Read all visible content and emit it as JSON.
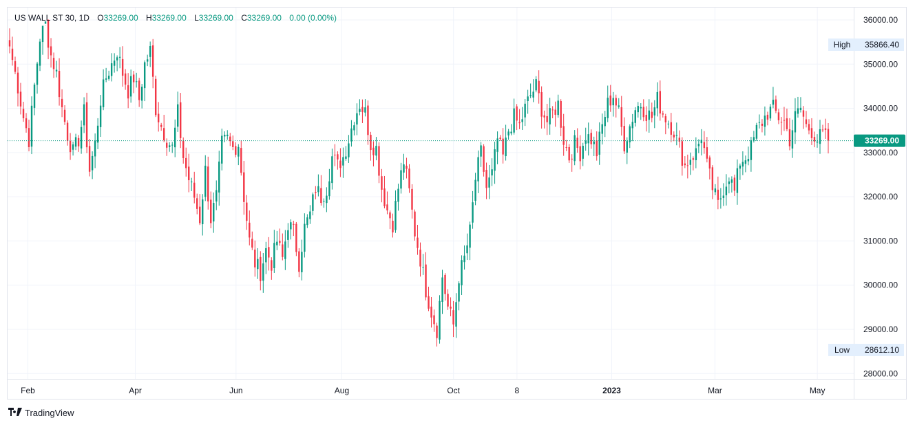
{
  "legend": {
    "symbol": "US WALL ST 30, 1D",
    "open_label": "O",
    "open": "33269.00",
    "high_label": "H",
    "high": "33269.00",
    "low_label": "L",
    "low": "33269.00",
    "close_label": "C",
    "close": "33269.00",
    "change": "0.00 (0.00%)"
  },
  "brand": {
    "name": "TradingView"
  },
  "colors": {
    "up": "#089981",
    "down": "#f23645",
    "last_price_bg": "#089981",
    "label_bg": "#e3effd"
  },
  "chart_data": {
    "type": "candlestick",
    "title": "US WALL ST 30, 1D",
    "y_ticks": [
      28000,
      29000,
      30000,
      31000,
      32000,
      33000,
      34000,
      35000,
      36000
    ],
    "y_tick_labels": [
      "28000.00",
      "29000.00",
      "30000.00",
      "31000.00",
      "32000.00",
      "33000.00",
      "34000.00",
      "35000.00",
      "36000.00"
    ],
    "ylim": [
      27880,
      36280
    ],
    "x_ticks": [
      {
        "label": "Feb",
        "t": 0.024,
        "bold": false
      },
      {
        "label": "Apr",
        "t": 0.151,
        "bold": false
      },
      {
        "label": "Jun",
        "t": 0.27,
        "bold": false
      },
      {
        "label": "Aug",
        "t": 0.395,
        "bold": false
      },
      {
        "label": "Oct",
        "t": 0.527,
        "bold": false
      },
      {
        "label": "8",
        "t": 0.602,
        "bold": false
      },
      {
        "label": "2023",
        "t": 0.714,
        "bold": true
      },
      {
        "label": "Mar",
        "t": 0.836,
        "bold": false
      },
      {
        "label": "May",
        "t": 0.957,
        "bold": false
      }
    ],
    "high_label": "High",
    "high_value": "35866.40",
    "high": 35866.4,
    "low_label": "Low",
    "low_value": "28612.10",
    "low": 28612.1,
    "last_price": 33269.0,
    "last_price_label": "33269.00",
    "anchors": [
      [
        0,
        35400
      ],
      [
        3,
        34500
      ],
      [
        5,
        33800
      ],
      [
        7,
        33300
      ],
      [
        9,
        34500
      ],
      [
        11,
        35600
      ],
      [
        13,
        35900
      ],
      [
        15,
        35200
      ],
      [
        17,
        34800
      ],
      [
        19,
        34000
      ],
      [
        21,
        33400
      ],
      [
        23,
        33000
      ],
      [
        25,
        33300
      ],
      [
        27,
        33900
      ],
      [
        29,
        32600
      ],
      [
        31,
        33200
      ],
      [
        33,
        34200
      ],
      [
        35,
        34700
      ],
      [
        37,
        35000
      ],
      [
        39,
        35300
      ],
      [
        41,
        34800
      ],
      [
        43,
        34400
      ],
      [
        45,
        34700
      ],
      [
        47,
        34200
      ],
      [
        49,
        35000
      ],
      [
        51,
        35300
      ],
      [
        53,
        34000
      ],
      [
        55,
        33600
      ],
      [
        57,
        33300
      ],
      [
        59,
        33100
      ],
      [
        61,
        33900
      ],
      [
        63,
        32900
      ],
      [
        65,
        32400
      ],
      [
        67,
        32000
      ],
      [
        69,
        31500
      ],
      [
        71,
        32600
      ],
      [
        73,
        31500
      ],
      [
        75,
        32000
      ],
      [
        77,
        33200
      ],
      [
        79,
        33300
      ],
      [
        81,
        33100
      ],
      [
        83,
        33200
      ],
      [
        85,
        32000
      ],
      [
        87,
        31000
      ],
      [
        89,
        30500
      ],
      [
        91,
        30300
      ],
      [
        93,
        30800
      ],
      [
        95,
        30500
      ],
      [
        97,
        31000
      ],
      [
        99,
        30600
      ],
      [
        101,
        31400
      ],
      [
        103,
        31200
      ],
      [
        105,
        30500
      ],
      [
        107,
        31300
      ],
      [
        109,
        31600
      ],
      [
        111,
        32200
      ],
      [
        113,
        32000
      ],
      [
        115,
        32200
      ],
      [
        117,
        32900
      ],
      [
        119,
        32700
      ],
      [
        121,
        32900
      ],
      [
        123,
        33300
      ],
      [
        125,
        33800
      ],
      [
        127,
        34100
      ],
      [
        129,
        33900
      ],
      [
        131,
        33200
      ],
      [
        133,
        33100
      ],
      [
        135,
        32200
      ],
      [
        137,
        31700
      ],
      [
        139,
        31400
      ],
      [
        141,
        32200
      ],
      [
        143,
        32800
      ],
      [
        145,
        32100
      ],
      [
        147,
        31200
      ],
      [
        149,
        30600
      ],
      [
        151,
        29900
      ],
      [
        153,
        29400
      ],
      [
        155,
        29000
      ],
      [
        157,
        30200
      ],
      [
        159,
        29500
      ],
      [
        161,
        29100
      ],
      [
        163,
        30200
      ],
      [
        165,
        30600
      ],
      [
        167,
        31200
      ],
      [
        169,
        32400
      ],
      [
        171,
        33000
      ],
      [
        173,
        32200
      ],
      [
        175,
        32500
      ],
      [
        177,
        33300
      ],
      [
        179,
        32900
      ],
      [
        181,
        33500
      ],
      [
        183,
        33800
      ],
      [
        185,
        33600
      ],
      [
        187,
        34000
      ],
      [
        189,
        34300
      ],
      [
        191,
        34500
      ],
      [
        193,
        34000
      ],
      [
        195,
        33700
      ],
      [
        197,
        33900
      ],
      [
        199,
        34100
      ],
      [
        201,
        33300
      ],
      [
        203,
        32900
      ],
      [
        205,
        33200
      ],
      [
        207,
        33000
      ],
      [
        209,
        33400
      ],
      [
        211,
        33300
      ],
      [
        213,
        33000
      ],
      [
        215,
        33600
      ],
      [
        217,
        34100
      ],
      [
        219,
        34300
      ],
      [
        221,
        33900
      ],
      [
        223,
        33200
      ],
      [
        225,
        33600
      ],
      [
        227,
        34000
      ],
      [
        229,
        34100
      ],
      [
        231,
        33900
      ],
      [
        233,
        33800
      ],
      [
        235,
        34200
      ],
      [
        237,
        33900
      ],
      [
        239,
        33700
      ],
      [
        241,
        33500
      ],
      [
        243,
        33100
      ],
      [
        245,
        32700
      ],
      [
        247,
        32900
      ],
      [
        249,
        33000
      ],
      [
        251,
        33400
      ],
      [
        253,
        32700
      ],
      [
        255,
        32200
      ],
      [
        257,
        31800
      ],
      [
        259,
        32200
      ],
      [
        261,
        32500
      ],
      [
        263,
        32100
      ],
      [
        265,
        32800
      ],
      [
        267,
        32900
      ],
      [
        269,
        33100
      ],
      [
        271,
        33500
      ],
      [
        273,
        33700
      ],
      [
        275,
        33900
      ],
      [
        277,
        34000
      ],
      [
        279,
        33800
      ],
      [
        281,
        33700
      ],
      [
        283,
        33300
      ],
      [
        285,
        33800
      ],
      [
        287,
        34000
      ],
      [
        289,
        33600
      ],
      [
        291,
        33500
      ],
      [
        293,
        33300
      ],
      [
        295,
        33400
      ],
      [
        297,
        33269
      ]
    ]
  }
}
